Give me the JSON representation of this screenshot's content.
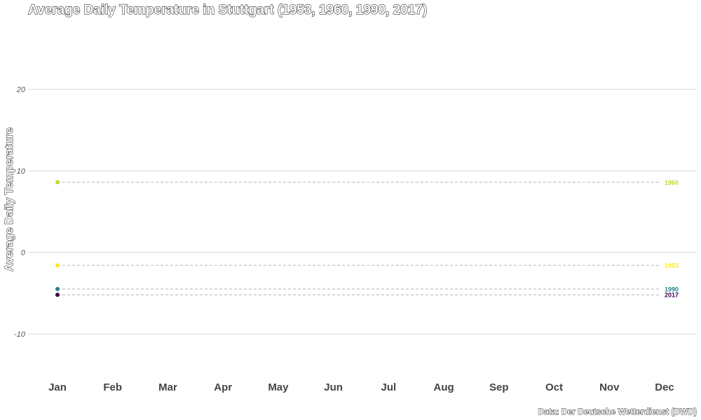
{
  "chart_data": {
    "type": "scatter",
    "title": "Average Daily Temperature in Stuttgart (1953, 1960, 1990, 2017)",
    "xlabel": "",
    "ylabel": "Average Daily Temperature",
    "caption": "Data: Der Deutsche Wetterdienst (DWD)",
    "x_categories": [
      "Jan",
      "Feb",
      "Mar",
      "Apr",
      "May",
      "Jun",
      "Jul",
      "Aug",
      "Sep",
      "Oct",
      "Nov",
      "Dec"
    ],
    "ylim": [
      -15,
      24
    ],
    "yticks": [
      -10,
      0,
      10,
      20
    ],
    "ytick_labels": [
      "-10",
      "0",
      "10",
      "20"
    ],
    "grid": true,
    "series": [
      {
        "name": "1953",
        "color": "#fde725",
        "x": "Jan",
        "value": -1.6
      },
      {
        "name": "1960",
        "color": "#b5de2b",
        "value": 8.6,
        "x": "Jan"
      },
      {
        "name": "1990",
        "color": "#26828e",
        "value": -4.5,
        "x": "Jan"
      },
      {
        "name": "2017",
        "color": "#440154",
        "value": -5.2,
        "x": "Jan"
      }
    ]
  }
}
